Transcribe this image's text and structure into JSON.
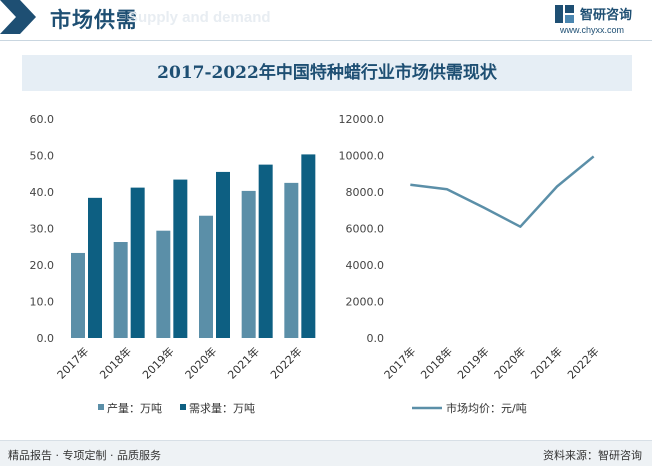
{
  "header": {
    "title": "市场供需",
    "ghost_text": "Supply and demand",
    "logo_name": "智研咨询",
    "logo_url": "www.chyxx.com"
  },
  "colors": {
    "production": "#5b8fa8",
    "demand": "#0d5f82",
    "price": "#5b8fa8",
    "title": "#1e4f73"
  },
  "chart_data": {
    "title": "2017-2022年中国特种蜡行业市场供需现状",
    "charts": [
      {
        "type": "bar",
        "categories": [
          "2017年",
          "2018年",
          "2019年",
          "2020年",
          "2021年",
          "2022年"
        ],
        "ylim": [
          0,
          60
        ],
        "yticks": [
          "0.0",
          "10.0",
          "20.0",
          "30.0",
          "40.0",
          "50.0",
          "60.0"
        ],
        "series": [
          {
            "name": "产量：万吨",
            "values": [
              23.3,
              26.3,
              29.4,
              33.5,
              40.3,
              42.5
            ]
          },
          {
            "name": "需求量：万吨",
            "values": [
              38.4,
              41.2,
              43.4,
              45.5,
              47.5,
              50.3
            ]
          }
        ],
        "legend": "bottom"
      },
      {
        "type": "line",
        "categories": [
          "2017年",
          "2018年",
          "2019年",
          "2020年",
          "2021年",
          "2022年"
        ],
        "ylim": [
          0,
          12000
        ],
        "yticks": [
          "0.0",
          "2000.0",
          "4000.0",
          "6000.0",
          "8000.0",
          "10000.0",
          "12000.0"
        ],
        "series": [
          {
            "name": "市场均价：元/吨",
            "values": [
              8400,
              8150,
              7150,
              6100,
              8300,
              9950
            ]
          }
        ],
        "legend": "bottom"
      }
    ]
  },
  "footer": {
    "left": "精品报告 · 专项定制 · 品质服务",
    "right": "资料来源：智研咨询"
  }
}
